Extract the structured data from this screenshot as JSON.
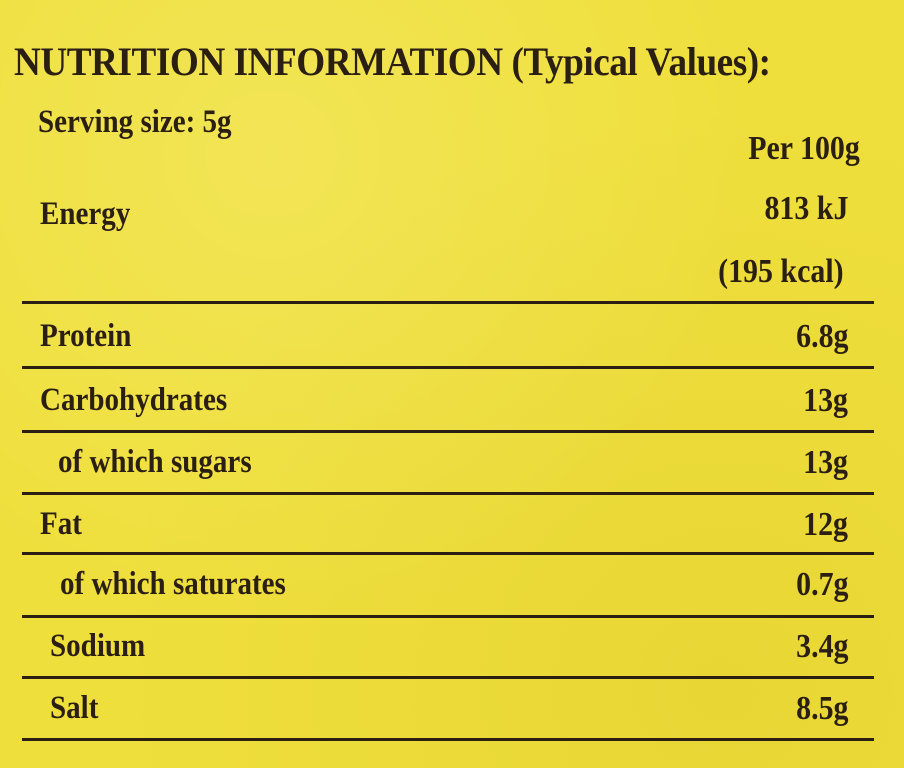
{
  "title": "NUTRITION INFORMATION (Typical Values):",
  "serving_size": "Serving size: 5g",
  "column_header": "Per 100g",
  "energy": {
    "label": "Energy",
    "kj": "813 kJ",
    "kcal": "(195 kcal)"
  },
  "rows": [
    {
      "label": "Protein",
      "value": "6.8g"
    },
    {
      "label": "Carbohydrates",
      "value": "13g"
    },
    {
      "label": "of which sugars",
      "value": "13g"
    },
    {
      "label": "Fat",
      "value": "12g"
    },
    {
      "label": "of which saturates",
      "value": "0.7g"
    },
    {
      "label": "Sodium",
      "value": "3.4g"
    },
    {
      "label": "Salt",
      "value": "8.5g"
    }
  ]
}
